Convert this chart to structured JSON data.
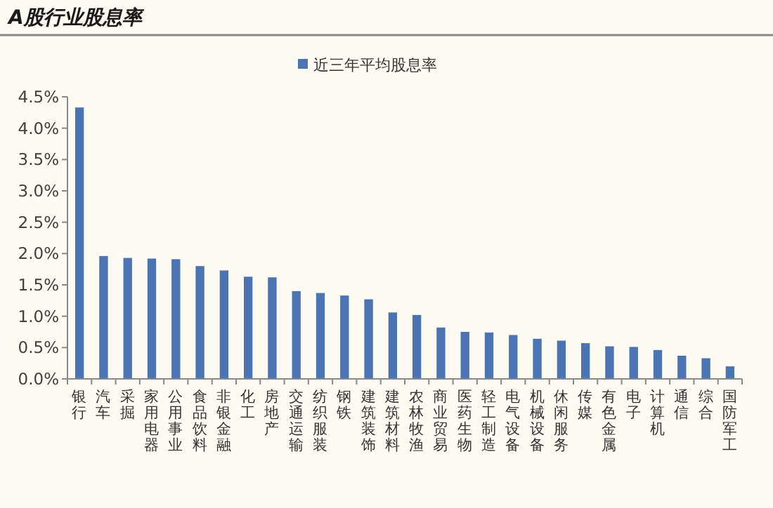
{
  "chart_data": {
    "type": "bar",
    "title": "A股行业股息率",
    "categories": [
      "银行",
      "汽车",
      "采掘",
      "家用电器",
      "公用事业",
      "食品饮料",
      "非银金融",
      "化工",
      "房地产",
      "交通运输",
      "纺织服装",
      "钢铁",
      "建筑装饰",
      "建筑材料",
      "农林牧渔",
      "商业贸易",
      "医药生物",
      "轻工制造",
      "电气设备",
      "机械设备",
      "休闲服务",
      "传媒",
      "有色金属",
      "电子",
      "计算机",
      "通信",
      "综合",
      "国防军工"
    ],
    "series": [
      {
        "name": "近三年平均股息率",
        "color": "#4a74b4",
        "values": [
          4.33,
          1.96,
          1.93,
          1.92,
          1.91,
          1.8,
          1.73,
          1.63,
          1.62,
          1.4,
          1.37,
          1.33,
          1.27,
          1.06,
          1.02,
          0.82,
          0.75,
          0.74,
          0.7,
          0.64,
          0.61,
          0.57,
          0.52,
          0.51,
          0.46,
          0.37,
          0.33,
          0.2
        ]
      }
    ],
    "ylim": [
      0,
      4.5
    ],
    "yticks": [
      {
        "value": 0,
        "label": "0.0%"
      },
      {
        "value": 0.5,
        "label": "0.5%"
      },
      {
        "value": 1,
        "label": "1.0%"
      },
      {
        "value": 1.5,
        "label": "1.5%"
      },
      {
        "value": 2,
        "label": "2.0%"
      },
      {
        "value": 2.5,
        "label": "2.5%"
      },
      {
        "value": 3,
        "label": "3.0%"
      },
      {
        "value": 3.5,
        "label": "3.5%"
      },
      {
        "value": 4,
        "label": "4.0%"
      },
      {
        "value": 4.5,
        "label": "4.5%"
      }
    ],
    "grid": false,
    "legend": "top"
  }
}
